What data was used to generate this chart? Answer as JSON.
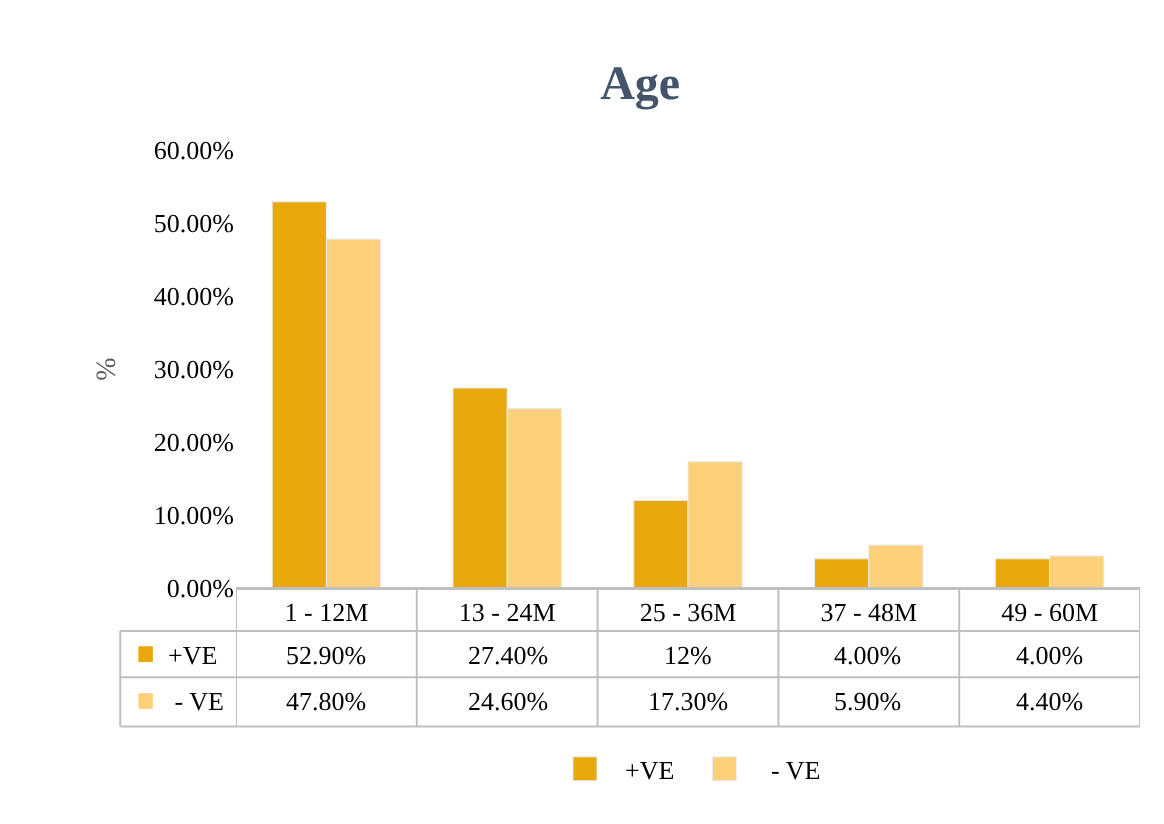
{
  "chart_data": {
    "type": "bar",
    "title": "Age",
    "ylabel": "%",
    "categories": [
      "1 - 12M",
      "13 - 24M",
      "25 - 36M",
      "37 - 48M",
      "49 - 60M"
    ],
    "series": [
      {
        "name": "+VE",
        "color": "#e8a80c",
        "values": [
          52.9,
          27.4,
          12,
          4.0,
          4.0
        ],
        "value_labels": [
          "52.90%",
          "27.40%",
          "12%",
          "4.00%",
          "4.00%"
        ]
      },
      {
        "name": " - VE",
        "color": "#fdd17a",
        "values": [
          47.8,
          24.6,
          17.3,
          5.9,
          4.4
        ],
        "value_labels": [
          "47.80%",
          "24.60%",
          "17.30%",
          "5.90%",
          "4.40%"
        ]
      }
    ],
    "ylim": [
      0,
      60
    ],
    "yticks": [
      {
        "value": 0,
        "label": "0.00%"
      },
      {
        "value": 10,
        "label": "10.00%"
      },
      {
        "value": 20,
        "label": "20.00%"
      },
      {
        "value": 30,
        "label": "30.00%"
      },
      {
        "value": 40,
        "label": "40.00%"
      },
      {
        "value": 50,
        "label": "50.00%"
      },
      {
        "value": 60,
        "label": "60.00%"
      }
    ],
    "grid": false,
    "legend": "bottom"
  }
}
